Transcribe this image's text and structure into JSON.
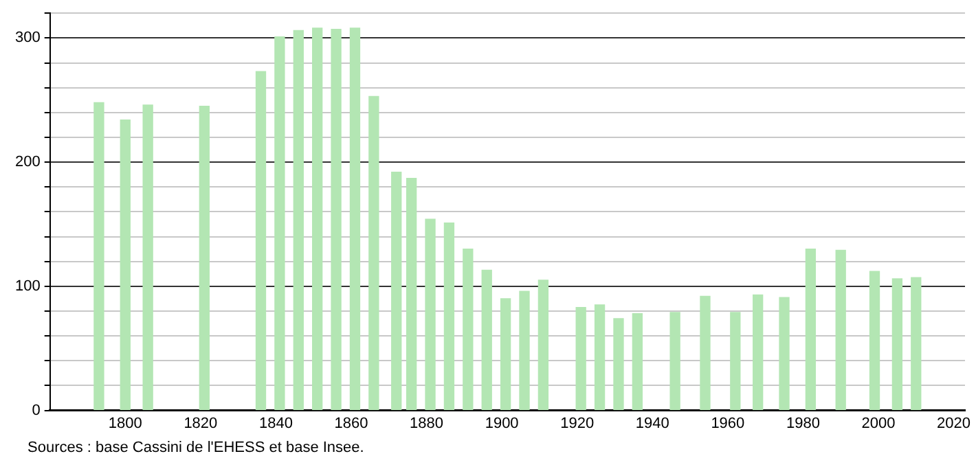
{
  "chart_data": {
    "type": "bar",
    "x": [
      1793,
      1800,
      1806,
      1821,
      1836,
      1841,
      1846,
      1851,
      1856,
      1861,
      1866,
      1872,
      1876,
      1881,
      1886,
      1891,
      1896,
      1901,
      1906,
      1911,
      1921,
      1926,
      1931,
      1936,
      1946,
      1954,
      1962,
      1968,
      1975,
      1982,
      1990,
      1999,
      2005,
      2010
    ],
    "values": [
      248,
      234,
      246,
      245,
      273,
      301,
      306,
      308,
      307,
      308,
      253,
      192,
      187,
      154,
      151,
      130,
      113,
      90,
      96,
      105,
      83,
      85,
      74,
      78,
      79,
      92,
      79,
      93,
      91,
      130,
      129,
      112,
      106,
      107
    ],
    "color": "#b3e6b3",
    "xlim": [
      1780,
      2023
    ],
    "xticks": [
      1800,
      1820,
      1840,
      1860,
      1880,
      1900,
      1920,
      1940,
      1960,
      1980,
      2000,
      2020
    ],
    "ylim": [
      0,
      320
    ],
    "yticks": [
      0,
      {
        "value": 20,
        "label": null
      },
      {
        "value": 40,
        "label": null
      },
      {
        "value": 60,
        "label": null
      },
      {
        "value": 80,
        "label": null
      },
      100,
      {
        "value": 120,
        "label": null
      },
      {
        "value": 140,
        "label": null
      },
      {
        "value": 160,
        "label": null
      },
      {
        "value": 180,
        "label": null
      },
      200,
      {
        "value": 220,
        "label": null
      },
      {
        "value": 240,
        "label": null
      },
      {
        "value": 260,
        "label": null
      },
      {
        "value": 280,
        "label": null
      },
      300,
      {
        "value": 320,
        "label": null
      }
    ],
    "grid": "y",
    "legend": false,
    "annotations": [
      "Sources : base Cassini de l'EHESS et base Insee."
    ]
  }
}
